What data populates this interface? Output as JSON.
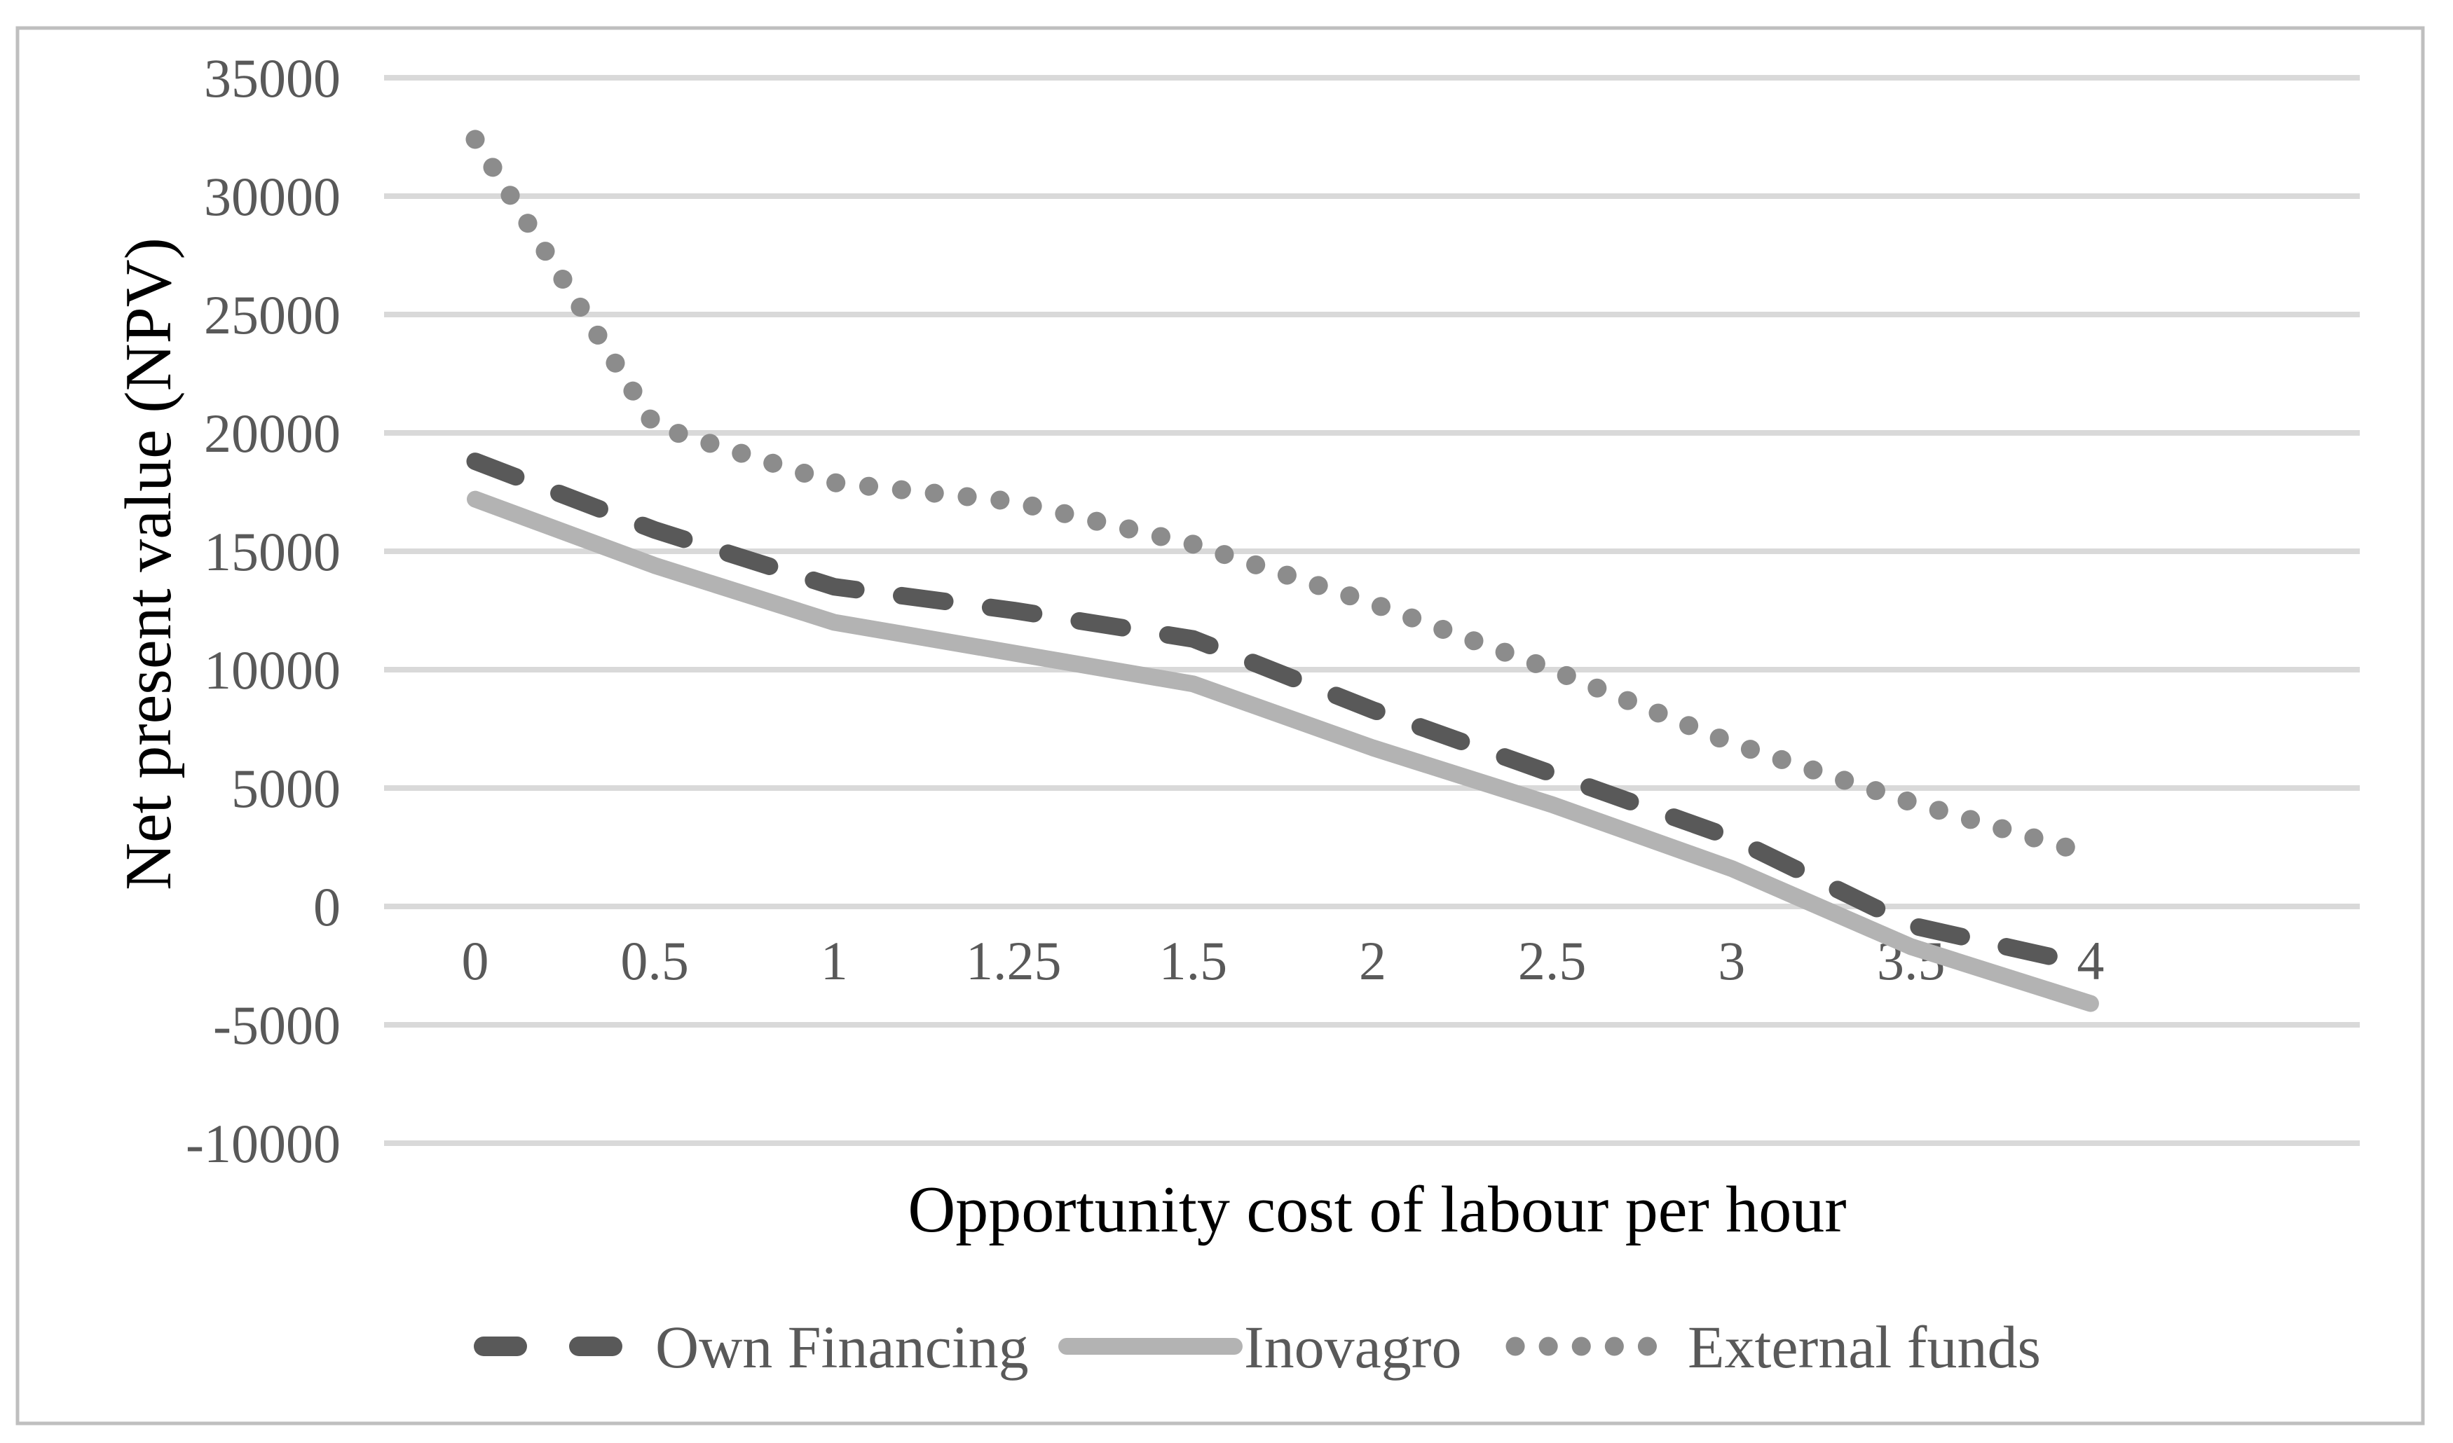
{
  "figure": {
    "background": "#ffffff",
    "border_color": "#bfbfbf",
    "text_color": "#595959",
    "gridline_color": "#d9d9d9"
  },
  "chart_data": {
    "type": "line",
    "title": "",
    "xlabel": "Opportunity cost of labour per hour",
    "ylabel": "Net present value (NPV)",
    "categories": [
      "0",
      "0.5",
      "1",
      "1.25",
      "1.5",
      "2",
      "2.5",
      "3",
      "3.5",
      "4"
    ],
    "y_ticks": [
      35000,
      30000,
      25000,
      20000,
      15000,
      10000,
      5000,
      0,
      -5000,
      -10000
    ],
    "ylim": [
      -10000,
      35000
    ],
    "grid": "horizontal",
    "legend_position": "bottom",
    "series": [
      {
        "name": "Own Financing",
        "style": "dashed",
        "color": "#595959",
        "values": [
          18800,
          15900,
          13500,
          12500,
          11300,
          8300,
          5600,
          2900,
          -800,
          -2500
        ]
      },
      {
        "name": "Inovagro",
        "style": "solid",
        "color": "#b3b3b3",
        "values": [
          17200,
          14400,
          12000,
          10700,
          9400,
          6700,
          4300,
          1600,
          -1700,
          -4100
        ]
      },
      {
        "name": "External funds",
        "style": "dotted",
        "color": "#8c8c8c",
        "values": [
          32400,
          20300,
          17900,
          17100,
          15300,
          12800,
          10000,
          6900,
          4400,
          2200
        ]
      }
    ]
  }
}
